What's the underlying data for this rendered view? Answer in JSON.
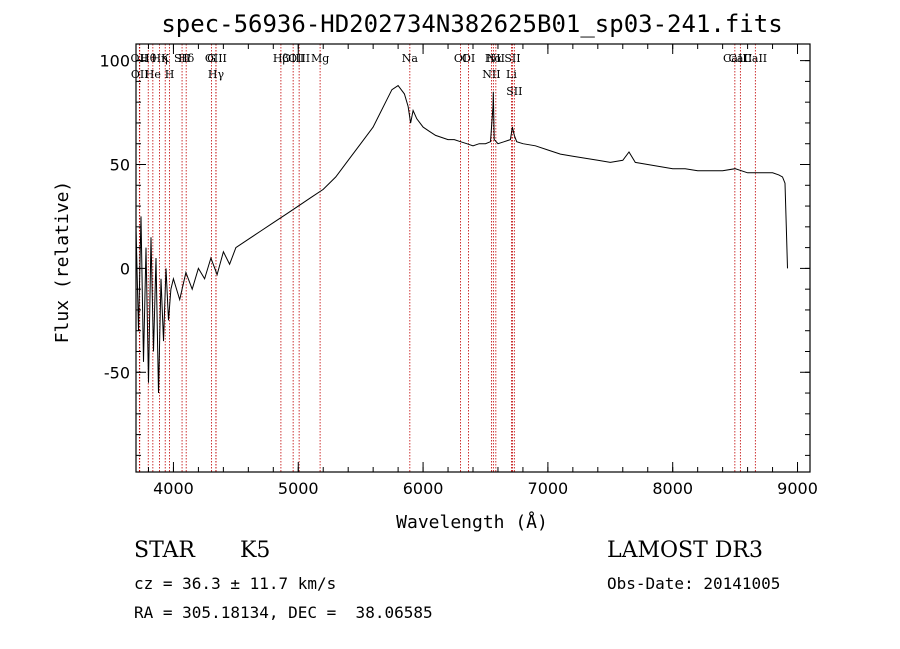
{
  "chart_data": {
    "type": "line",
    "title": "spec-56936-HD202734N382625B01_sp03-241.fits",
    "xlabel": "Wavelength (Å)",
    "ylabel": "Flux (relative)",
    "xlim": [
      3700,
      9100
    ],
    "ylim": [
      -98,
      108
    ],
    "xticks": [
      4000,
      5000,
      6000,
      7000,
      8000,
      9000
    ],
    "yticks": [
      -50,
      0,
      50,
      100
    ],
    "grid": false,
    "spectrum": {
      "name": "flux",
      "x": [
        3700,
        3720,
        3740,
        3760,
        3780,
        3800,
        3820,
        3840,
        3860,
        3880,
        3900,
        3920,
        3940,
        3960,
        3980,
        4000,
        4050,
        4100,
        4150,
        4200,
        4250,
        4300,
        4350,
        4400,
        4450,
        4500,
        4600,
        4700,
        4800,
        4900,
        5000,
        5100,
        5200,
        5300,
        5400,
        5500,
        5600,
        5700,
        5750,
        5800,
        5850,
        5880,
        5900,
        5920,
        5950,
        6000,
        6050,
        6100,
        6150,
        6200,
        6250,
        6300,
        6350,
        6400,
        6450,
        6500,
        6540,
        6560,
        6563,
        6570,
        6600,
        6650,
        6700,
        6716,
        6731,
        6750,
        6800,
        6900,
        7000,
        7100,
        7200,
        7300,
        7400,
        7500,
        7600,
        7650,
        7700,
        7800,
        7900,
        8000,
        8100,
        8200,
        8300,
        8400,
        8500,
        8600,
        8700,
        8800,
        8850,
        8880,
        8900,
        8910,
        8920
      ],
      "y": [
        20,
        -30,
        25,
        -45,
        10,
        -55,
        15,
        -40,
        5,
        -60,
        -5,
        -35,
        0,
        -25,
        -10,
        -5,
        -15,
        -2,
        -10,
        0,
        -5,
        5,
        -3,
        8,
        2,
        10,
        14,
        18,
        22,
        26,
        30,
        34,
        38,
        44,
        52,
        60,
        68,
        80,
        86,
        88,
        84,
        78,
        70,
        76,
        72,
        68,
        66,
        64,
        63,
        62,
        62,
        61,
        60,
        59,
        60,
        60,
        61,
        78,
        85,
        62,
        60,
        61,
        62,
        68,
        64,
        61,
        60,
        59,
        57,
        55,
        54,
        53,
        52,
        51,
        52,
        56,
        51,
        50,
        49,
        48,
        48,
        47,
        47,
        47,
        48,
        46,
        46,
        46,
        45,
        44,
        41,
        20,
        0
      ]
    },
    "lines": [
      {
        "label": "Hθ",
        "wave": 3798
      },
      {
        "label": "OII",
        "wave": 3727
      },
      {
        "label": "OII",
        "wave": 3730
      },
      {
        "label": "He",
        "wave": 3835
      },
      {
        "label": "Hη",
        "wave": 3889
      },
      {
        "label": "K",
        "wave": 3934
      },
      {
        "label": "SII",
        "wave": 4069
      },
      {
        "label": "H",
        "wave": 3969
      },
      {
        "label": "Hδ",
        "wave": 4102
      },
      {
        "label": "OIII",
        "wave": 4340
      },
      {
        "label": "Hγ",
        "wave": 4341
      },
      {
        "label": "G",
        "wave": 4305
      },
      {
        "label": "Hβ",
        "wave": 4861
      },
      {
        "label": "OIII",
        "wave": 4959
      },
      {
        "label": "OIII",
        "wave": 5007
      },
      {
        "label": "Mg",
        "wave": 5175
      },
      {
        "label": "Na",
        "wave": 5894
      },
      {
        "label": "OI",
        "wave": 6300
      },
      {
        "label": "OI",
        "wave": 6364
      },
      {
        "label": "Hα",
        "wave": 6563
      },
      {
        "label": "NII",
        "wave": 6548
      },
      {
        "label": "NII",
        "wave": 6583
      },
      {
        "label": "SII",
        "wave": 6716
      },
      {
        "label": "Li",
        "wave": 6708
      },
      {
        "label": "SII",
        "wave": 6731
      },
      {
        "label": "CaII",
        "wave": 8498
      },
      {
        "label": "CaII",
        "wave": 8542
      },
      {
        "label": "CaII",
        "wave": 8662
      }
    ]
  },
  "info": {
    "object_class": "STAR",
    "subclass": "K5",
    "survey": "LAMOST DR3",
    "cz": "cz = 36.3 ± 11.7 km/s",
    "obs_date": "Obs-Date: 20141005",
    "coords": "RA = 305.18134, DEC =  38.06585"
  },
  "colors": {
    "axis": "#000000",
    "line_marker": "#c00000",
    "spectrum": "#000000"
  }
}
